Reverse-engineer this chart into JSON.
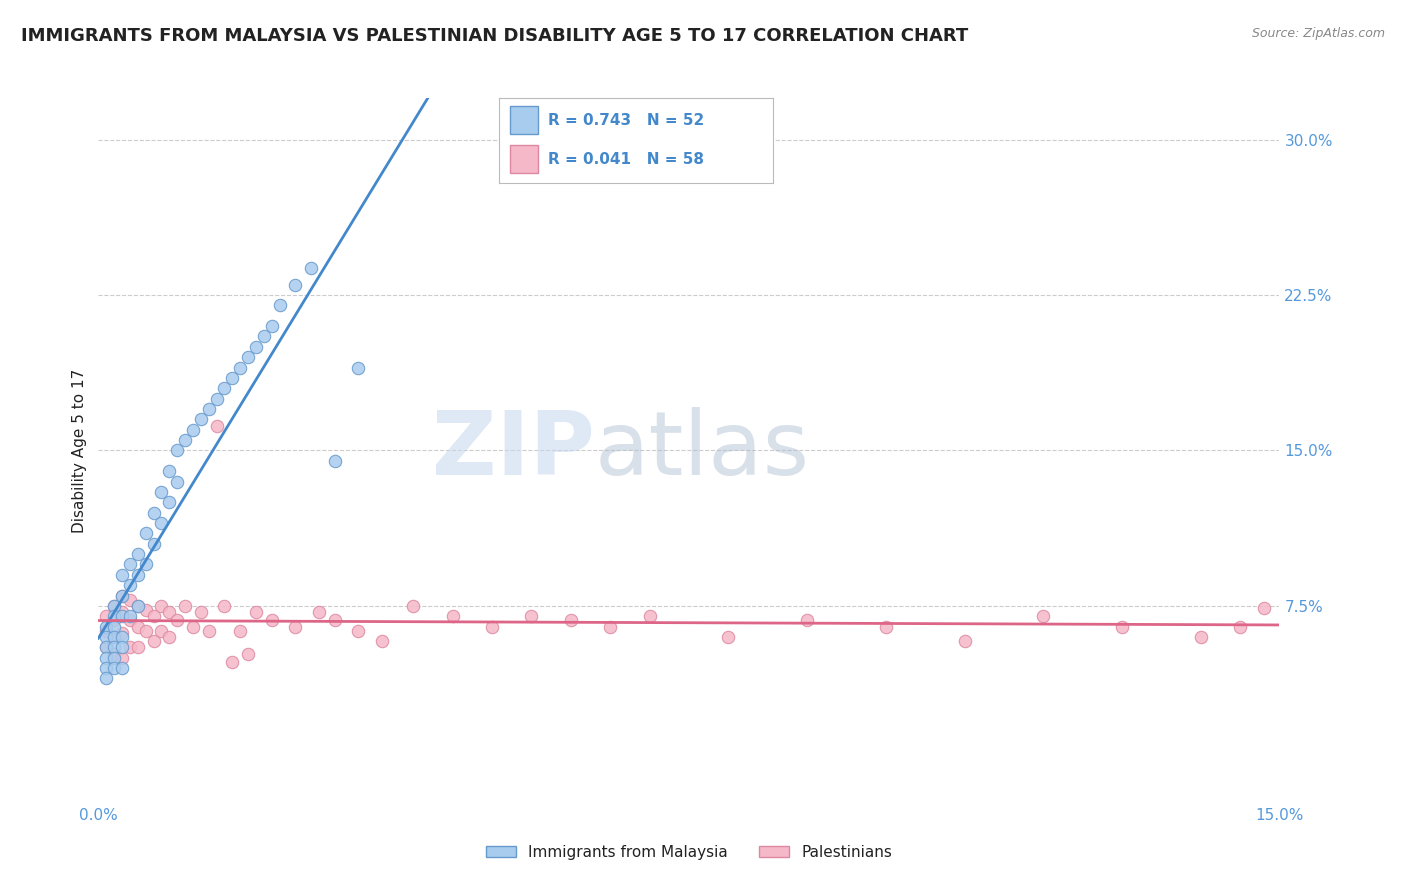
{
  "title": "IMMIGRANTS FROM MALAYSIA VS PALESTINIAN DISABILITY AGE 5 TO 17 CORRELATION CHART",
  "source": "Source: ZipAtlas.com",
  "ylabel": "Disability Age 5 to 17",
  "xlim": [
    0.0,
    0.15
  ],
  "ylim": [
    -0.02,
    0.32
  ],
  "yticks": [
    0.075,
    0.15,
    0.225,
    0.3
  ],
  "ytick_labels": [
    "7.5%",
    "15.0%",
    "22.5%",
    "30.0%"
  ],
  "xtick_positions": [
    0.0,
    0.15
  ],
  "xtick_labels": [
    "0.0%",
    "15.0%"
  ],
  "malaysia_color": "#A8CCEE",
  "malaysia_edge": "#6699CC",
  "palestine_color": "#F5B8C8",
  "palestine_edge": "#DD88A0",
  "regression_malaysia_color": "#4488CC",
  "regression_palestine_color": "#DD6688",
  "legend_R_malaysia": "R = 0.743",
  "legend_N_malaysia": "N = 52",
  "legend_R_palestine": "R = 0.041",
  "legend_N_palestine": "N = 58",
  "legend_label_malaysia": "Immigrants from Malaysia",
  "legend_label_palestine": "Palestinians",
  "watermark_zip": "ZIP",
  "watermark_atlas": "atlas",
  "title_fontsize": 13,
  "axis_label_fontsize": 11,
  "tick_fontsize": 11,
  "background_color": "#FFFFFF",
  "grid_color": "#CCCCCC",
  "title_color": "#222222",
  "axis_tick_color": "#5599DD",
  "malaysia_scatter_x": [
    0.001,
    0.001,
    0.001,
    0.001,
    0.001,
    0.001,
    0.002,
    0.002,
    0.002,
    0.002,
    0.002,
    0.002,
    0.002,
    0.003,
    0.003,
    0.003,
    0.003,
    0.003,
    0.003,
    0.004,
    0.004,
    0.004,
    0.005,
    0.005,
    0.005,
    0.006,
    0.006,
    0.007,
    0.007,
    0.008,
    0.008,
    0.009,
    0.009,
    0.01,
    0.01,
    0.011,
    0.012,
    0.013,
    0.014,
    0.015,
    0.016,
    0.017,
    0.018,
    0.019,
    0.02,
    0.021,
    0.022,
    0.023,
    0.025,
    0.027,
    0.03,
    0.033
  ],
  "malaysia_scatter_y": [
    0.065,
    0.06,
    0.055,
    0.05,
    0.045,
    0.04,
    0.075,
    0.07,
    0.065,
    0.06,
    0.055,
    0.05,
    0.045,
    0.09,
    0.08,
    0.07,
    0.06,
    0.055,
    0.045,
    0.095,
    0.085,
    0.07,
    0.1,
    0.09,
    0.075,
    0.11,
    0.095,
    0.12,
    0.105,
    0.13,
    0.115,
    0.14,
    0.125,
    0.15,
    0.135,
    0.155,
    0.16,
    0.165,
    0.17,
    0.175,
    0.18,
    0.185,
    0.19,
    0.195,
    0.2,
    0.205,
    0.21,
    0.22,
    0.23,
    0.238,
    0.145,
    0.19
  ],
  "palestine_scatter_x": [
    0.001,
    0.001,
    0.001,
    0.002,
    0.002,
    0.002,
    0.002,
    0.003,
    0.003,
    0.003,
    0.003,
    0.004,
    0.004,
    0.004,
    0.005,
    0.005,
    0.005,
    0.006,
    0.006,
    0.007,
    0.007,
    0.008,
    0.008,
    0.009,
    0.009,
    0.01,
    0.011,
    0.012,
    0.013,
    0.014,
    0.015,
    0.016,
    0.018,
    0.02,
    0.022,
    0.025,
    0.028,
    0.03,
    0.033,
    0.036,
    0.04,
    0.045,
    0.05,
    0.055,
    0.06,
    0.065,
    0.07,
    0.08,
    0.09,
    0.1,
    0.11,
    0.12,
    0.13,
    0.14,
    0.145,
    0.148,
    0.017,
    0.019
  ],
  "palestine_scatter_y": [
    0.07,
    0.063,
    0.055,
    0.075,
    0.068,
    0.06,
    0.052,
    0.08,
    0.072,
    0.062,
    0.05,
    0.078,
    0.068,
    0.055,
    0.075,
    0.065,
    0.055,
    0.073,
    0.063,
    0.07,
    0.058,
    0.075,
    0.063,
    0.072,
    0.06,
    0.068,
    0.075,
    0.065,
    0.072,
    0.063,
    0.162,
    0.075,
    0.063,
    0.072,
    0.068,
    0.065,
    0.072,
    0.068,
    0.063,
    0.058,
    0.075,
    0.07,
    0.065,
    0.07,
    0.068,
    0.065,
    0.07,
    0.06,
    0.068,
    0.065,
    0.058,
    0.07,
    0.065,
    0.06,
    0.065,
    0.074,
    0.048,
    0.052
  ]
}
